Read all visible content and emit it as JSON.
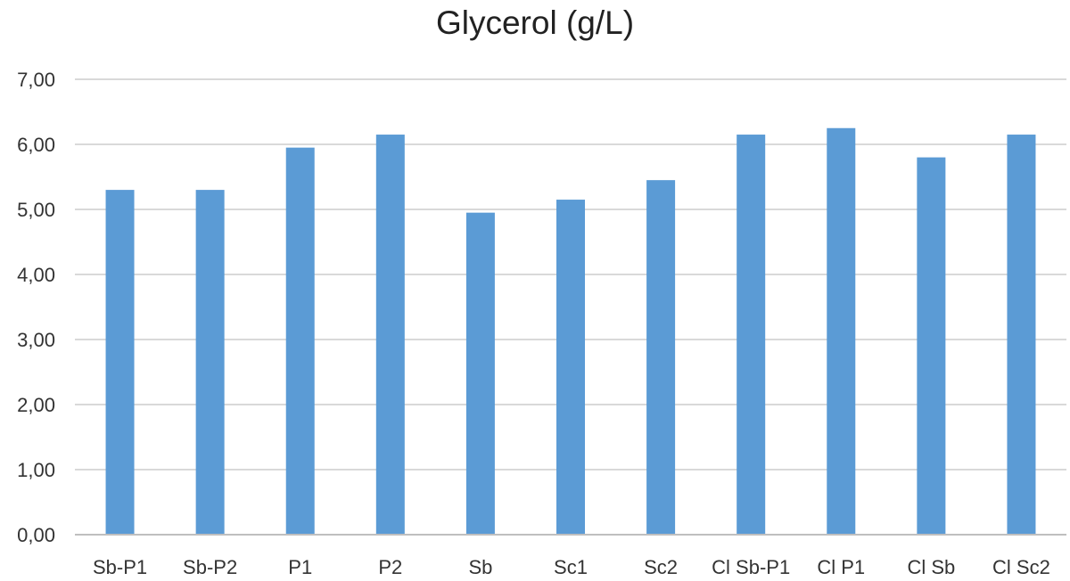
{
  "chart_data": {
    "type": "bar",
    "title": "Glycerol (g/L)",
    "xlabel": "",
    "ylabel": "",
    "categories": [
      "Sb-P1",
      "Sb-P2",
      "P1",
      "P2",
      "Sb",
      "Sc1",
      "Sc2",
      "Cl Sb-P1",
      "Cl P1",
      "Cl Sb",
      "Cl Sc2"
    ],
    "values": [
      5.3,
      5.3,
      5.95,
      6.15,
      4.95,
      5.15,
      5.45,
      6.15,
      6.25,
      5.8,
      6.15
    ],
    "ylim": [
      0,
      7
    ],
    "yticks": [
      "0,00",
      "1,00",
      "2,00",
      "3,00",
      "4,00",
      "5,00",
      "6,00",
      "7,00"
    ],
    "grid": true,
    "legend": "none",
    "colors": {
      "bar": "#5b9bd5",
      "grid": "#d9d9d9",
      "axis": "#bfbfbf"
    }
  }
}
